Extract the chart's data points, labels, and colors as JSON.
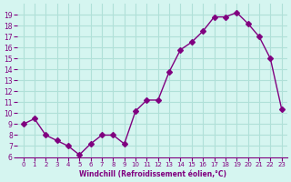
{
  "x": [
    0,
    1,
    2,
    3,
    4,
    5,
    6,
    7,
    8,
    9,
    10,
    11,
    12,
    13,
    14,
    15,
    16,
    17,
    18,
    19,
    20,
    21,
    22,
    23
  ],
  "y": [
    9.0,
    9.5,
    8.0,
    7.5,
    7.0,
    6.2,
    7.2,
    8.0,
    8.0,
    7.2,
    10.2,
    11.2,
    11.2,
    13.8,
    15.8,
    16.5,
    17.5,
    18.8,
    18.8,
    19.2,
    18.2,
    17.0,
    15.0,
    10.4
  ],
  "line_color": "#800080",
  "marker": "D",
  "marker_size": 3,
  "bg_color": "#d5f5f0",
  "grid_color": "#b0e0d8",
  "xlabel": "Windchill (Refroidissement éolien,°C)",
  "xlabel_color": "#800080",
  "tick_color": "#800080",
  "ylim": [
    6,
    20
  ],
  "xlim": [
    -0.5,
    23.5
  ],
  "yticks": [
    6,
    7,
    8,
    9,
    10,
    11,
    12,
    13,
    14,
    15,
    16,
    17,
    18,
    19
  ],
  "xticks": [
    0,
    1,
    2,
    3,
    4,
    5,
    6,
    7,
    8,
    9,
    10,
    11,
    12,
    13,
    14,
    15,
    16,
    17,
    18,
    19,
    20,
    21,
    22,
    23
  ],
  "spine_color": "#800080"
}
